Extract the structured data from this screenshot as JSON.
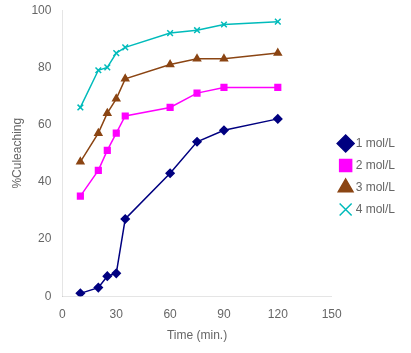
{
  "chart_data": {
    "type": "line",
    "xlabel": "Time (min.)",
    "ylabel": "%Culeaching",
    "x": [
      10,
      20,
      25,
      30,
      35,
      60,
      75,
      90,
      120
    ],
    "series": [
      {
        "name": "1 mol/L",
        "color": "#000080",
        "marker": "diamond",
        "values": [
          1,
          3,
          7,
          8,
          27,
          43,
          54,
          58,
          62
        ]
      },
      {
        "name": "2 mol/L",
        "color": "#FF00FF",
        "marker": "square",
        "values": [
          35,
          44,
          51,
          57,
          63,
          66,
          71,
          73,
          73
        ]
      },
      {
        "name": "3 mol/L",
        "color": "#8B4513",
        "marker": "triangle",
        "values": [
          47,
          57,
          64,
          69,
          76,
          81,
          83,
          83,
          85
        ]
      },
      {
        "name": "4 mol/L",
        "color": "#00BBBB",
        "marker": "x",
        "values": [
          66,
          79,
          80,
          85,
          87,
          92,
          93,
          95,
          96
        ]
      }
    ],
    "xlim": [
      0,
      150
    ],
    "ylim": [
      0,
      100
    ],
    "xticks": [
      0,
      30,
      60,
      90,
      120,
      150
    ],
    "yticks": [
      0,
      20,
      40,
      60,
      80,
      100
    ],
    "legend": "center right",
    "grid": false
  }
}
